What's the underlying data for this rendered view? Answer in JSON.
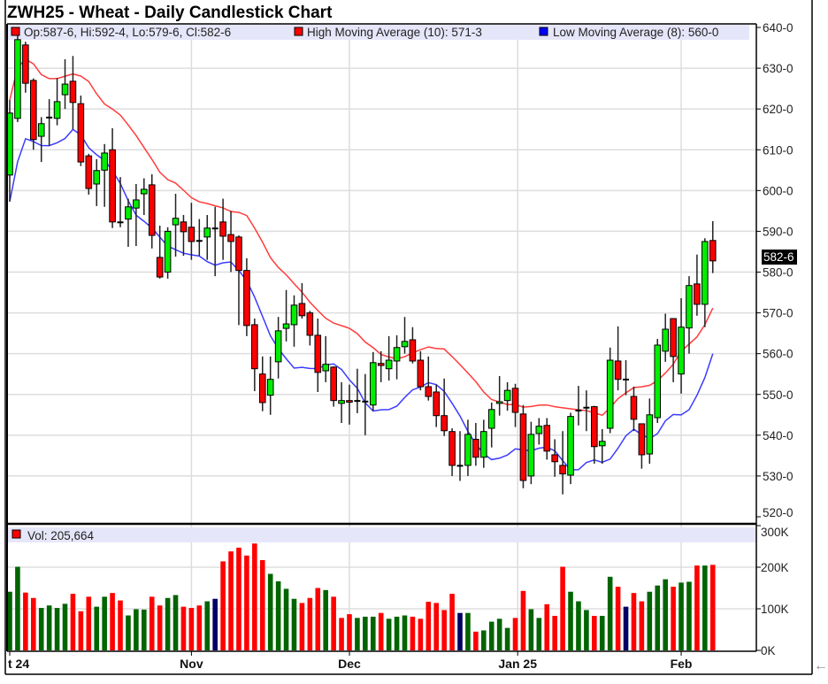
{
  "title": "ZWH25 - Wheat - Daily Candlestick Chart",
  "legend": {
    "ohlc": "Op:587-6, Hi:592-4, Lo:579-6, Cl:582-6",
    "high_ma": "High Moving Average (10): 571-3",
    "low_ma": "Low Moving Average (8): 560-0",
    "volume": "Vol: 205,664"
  },
  "last_price_label": "582-6",
  "back_arrow": "←",
  "colors": {
    "up": "#00ee00",
    "down": "#ff0000",
    "vol_up": "#006400",
    "vol_down": "#ff0000",
    "vol_flat": "#000066",
    "high_ma": "#ff3b3b",
    "low_ma": "#3b3bff",
    "legend_band": "#e6e6fa",
    "grid": "#dddddd"
  },
  "chart_data": [
    {
      "type": "candlestick",
      "title": "ZWH25 - Wheat - Daily Candlestick Chart",
      "ylim": [
        520,
        640
      ],
      "yticks": [
        "520-0",
        "530-0",
        "540-0",
        "550-0",
        "560-0",
        "570-0",
        "580-0",
        "590-0",
        "600-0",
        "610-0",
        "620-0",
        "630-0",
        "640-0"
      ],
      "ytick_values": [
        520,
        530,
        540,
        550,
        560,
        570,
        580,
        590,
        600,
        610,
        620,
        630,
        640
      ],
      "xtick_labels": [
        {
          "label": "t 24",
          "bar": 0
        },
        {
          "label": "Nov",
          "bar": 23
        },
        {
          "label": "Dec",
          "bar": 43
        },
        {
          "label": "Jan 25",
          "bar": 64.3
        },
        {
          "label": "Feb",
          "bar": 85
        }
      ],
      "grid": true,
      "overlays": [
        {
          "name": "High Moving Average (10)",
          "source": "high",
          "period": 10
        },
        {
          "name": "Low Moving Average (8)",
          "source": "low",
          "period": 8
        }
      ],
      "ohlc": [
        [
          603.8,
          622.2,
          597.3,
          619
        ],
        [
          617.7,
          638,
          616.8,
          637
        ],
        [
          635.7,
          636.5,
          624,
          626.3
        ],
        [
          627,
          627.5,
          610,
          612.5
        ],
        [
          613.3,
          618,
          607,
          616.4
        ],
        [
          617.8,
          622.4,
          611,
          618
        ],
        [
          617.7,
          627.6,
          616,
          621.8
        ],
        [
          623.5,
          632.2,
          620,
          626.1
        ],
        [
          626.8,
          633,
          615,
          621.6
        ],
        [
          621.3,
          623.3,
          606,
          607
        ],
        [
          608.5,
          609,
          599,
          600.5
        ],
        [
          601.6,
          607.7,
          596.2,
          604.9
        ],
        [
          605,
          611.4,
          596,
          609.2
        ],
        [
          610,
          615.3,
          590.8,
          592.3
        ],
        [
          592.3,
          603.3,
          591,
          592.1
        ],
        [
          593,
          598,
          586.2,
          596
        ],
        [
          595.7,
          601.6,
          586.4,
          597.7
        ],
        [
          599.2,
          603,
          594,
          600.3
        ],
        [
          601.4,
          604,
          585.8,
          589
        ],
        [
          583.6,
          591.4,
          578.4,
          578.8
        ],
        [
          580,
          591,
          578.4,
          590
        ],
        [
          591.6,
          599.2,
          583.8,
          593.2
        ],
        [
          592.3,
          594,
          584,
          589.9
        ],
        [
          591,
          597,
          583,
          587.5
        ],
        [
          587.8,
          593,
          584,
          587.5
        ],
        [
          588.6,
          594,
          583,
          590.8
        ],
        [
          590.8,
          596,
          579,
          590.6
        ],
        [
          592.3,
          598,
          583,
          588.8
        ],
        [
          589.2,
          595,
          580,
          587.5
        ],
        [
          588.6,
          589,
          567,
          580.4
        ],
        [
          580.4,
          583.4,
          564.3,
          566.9
        ],
        [
          567.1,
          568.6,
          550.8,
          556.3
        ],
        [
          555,
          559.3,
          545.9,
          548
        ],
        [
          549.8,
          559.3,
          545,
          553.7
        ],
        [
          558,
          569,
          553.9,
          565.6
        ],
        [
          566.2,
          575.6,
          563,
          567.3
        ],
        [
          567.1,
          574.3,
          561.7,
          571.9
        ],
        [
          572.3,
          577.3,
          568.6,
          569.3
        ],
        [
          570,
          570.5,
          562,
          564.5
        ],
        [
          564.5,
          568.6,
          550.6,
          555.4
        ],
        [
          555.8,
          564.3,
          553,
          557.4
        ],
        [
          556.7,
          556.9,
          547,
          548.5
        ],
        [
          547.8,
          553,
          543,
          548.5
        ],
        [
          548.5,
          552.4,
          542.6,
          548.1
        ],
        [
          548.5,
          556.3,
          545.4,
          548.3
        ],
        [
          548.4,
          555,
          540,
          548.1
        ],
        [
          547.4,
          560.4,
          545.9,
          557.8
        ],
        [
          557.6,
          560.6,
          553,
          557.1
        ],
        [
          556.3,
          564.3,
          553.4,
          558.4
        ],
        [
          558.2,
          564.5,
          553.7,
          561.5
        ],
        [
          561.7,
          569,
          560,
          563
        ],
        [
          563.4,
          566.5,
          557.6,
          558.2
        ],
        [
          558.4,
          560.6,
          551,
          551.9
        ],
        [
          551.9,
          559.3,
          548.5,
          549.5
        ],
        [
          550.6,
          552.4,
          542,
          544.8
        ],
        [
          544.8,
          553.9,
          539.8,
          541.1
        ],
        [
          540.9,
          541.7,
          530,
          532.6
        ],
        [
          532.6,
          541,
          528.8,
          532.4
        ],
        [
          532.6,
          543.8,
          530,
          540.2
        ],
        [
          539,
          543,
          532.5,
          534.6
        ],
        [
          534.6,
          543.8,
          532,
          540.9
        ],
        [
          541.7,
          548,
          537,
          546.3
        ],
        [
          547.8,
          554.5,
          544.8,
          548.2
        ],
        [
          548.5,
          553,
          546,
          551
        ],
        [
          551.5,
          552.6,
          542,
          545.6
        ],
        [
          545.2,
          547.4,
          527,
          528.9
        ],
        [
          530,
          543.3,
          528,
          540.2
        ],
        [
          540.4,
          544.2,
          537.7,
          542.2
        ],
        [
          542.4,
          544.2,
          534,
          536.1
        ],
        [
          535.2,
          539,
          529.8,
          533.5
        ],
        [
          532.6,
          541,
          525.5,
          530.5
        ],
        [
          530.2,
          545.5,
          528,
          544.6
        ],
        [
          546,
          552.1,
          542.4,
          546.1
        ],
        [
          546.7,
          551,
          541,
          546.8
        ],
        [
          547,
          547.2,
          533,
          537.2
        ],
        [
          537.4,
          541.5,
          533,
          538.5
        ],
        [
          541.7,
          561.5,
          540.5,
          558.4
        ],
        [
          558.2,
          566.7,
          551,
          553.7
        ],
        [
          553.7,
          558.4,
          549.8,
          553.6
        ],
        [
          549.5,
          551.9,
          541,
          543.9
        ],
        [
          542.8,
          542.9,
          531.8,
          535.2
        ],
        [
          535.4,
          549,
          533,
          545
        ],
        [
          544.3,
          563.6,
          543,
          562.1
        ],
        [
          560.6,
          569.8,
          558,
          566
        ],
        [
          568.6,
          568.7,
          553,
          559.3
        ],
        [
          555,
          573.6,
          550.2,
          566.5
        ],
        [
          566.3,
          579,
          560,
          576.7
        ],
        [
          577.1,
          584.3,
          569.3,
          572.1
        ],
        [
          572.1,
          588.3,
          566.5,
          587.5
        ],
        [
          587.75,
          592.5,
          579.75,
          582.75
        ]
      ]
    },
    {
      "type": "bar",
      "title": "Vol: 205,664",
      "ylim": [
        0,
        300
      ],
      "yticks": [
        "0K",
        "100K",
        "200K",
        "300K"
      ],
      "ytick_values": [
        0,
        100,
        200,
        300
      ],
      "unit": "K",
      "volume_k": [
        141,
        201,
        139,
        126,
        102,
        108,
        102,
        112,
        136,
        94,
        129,
        105,
        129,
        138,
        120,
        84,
        99,
        98,
        129,
        108,
        126,
        133,
        105,
        102,
        108,
        118,
        124,
        214,
        238,
        247,
        228,
        257,
        217,
        184,
        166,
        148,
        124,
        114,
        126,
        150,
        145,
        129,
        78,
        87,
        78,
        81,
        81,
        90,
        76,
        81,
        84,
        81,
        76,
        117,
        114,
        97,
        136,
        90,
        90,
        45,
        48,
        69,
        76,
        54,
        78,
        143,
        99,
        78,
        111,
        83,
        201,
        141,
        118,
        97,
        83,
        83,
        177,
        153,
        105,
        138,
        118,
        141,
        156,
        171,
        153,
        163,
        165,
        204,
        204,
        205.664
      ],
      "bar_colors": [
        "up",
        "up",
        "down",
        "down",
        "up",
        "up",
        "up",
        "up",
        "down",
        "down",
        "down",
        "up",
        "up",
        "down",
        "down",
        "up",
        "up",
        "up",
        "down",
        "down",
        "up",
        "up",
        "down",
        "down",
        "down",
        "up",
        "flat",
        "down",
        "down",
        "down",
        "down",
        "down",
        "down",
        "up",
        "up",
        "up",
        "up",
        "down",
        "down",
        "down",
        "up",
        "down",
        "down",
        "down",
        "up",
        "up",
        "up",
        "down",
        "up",
        "up",
        "up",
        "down",
        "down",
        "down",
        "down",
        "down",
        "down",
        "flat",
        "up",
        "down",
        "up",
        "up",
        "up",
        "up",
        "down",
        "down",
        "up",
        "up",
        "down",
        "down",
        "down",
        "up",
        "up",
        "up",
        "down",
        "up",
        "up",
        "down",
        "flat",
        "down",
        "down",
        "up",
        "up",
        "up",
        "down",
        "up",
        "up",
        "down",
        "up",
        "down"
      ]
    }
  ]
}
